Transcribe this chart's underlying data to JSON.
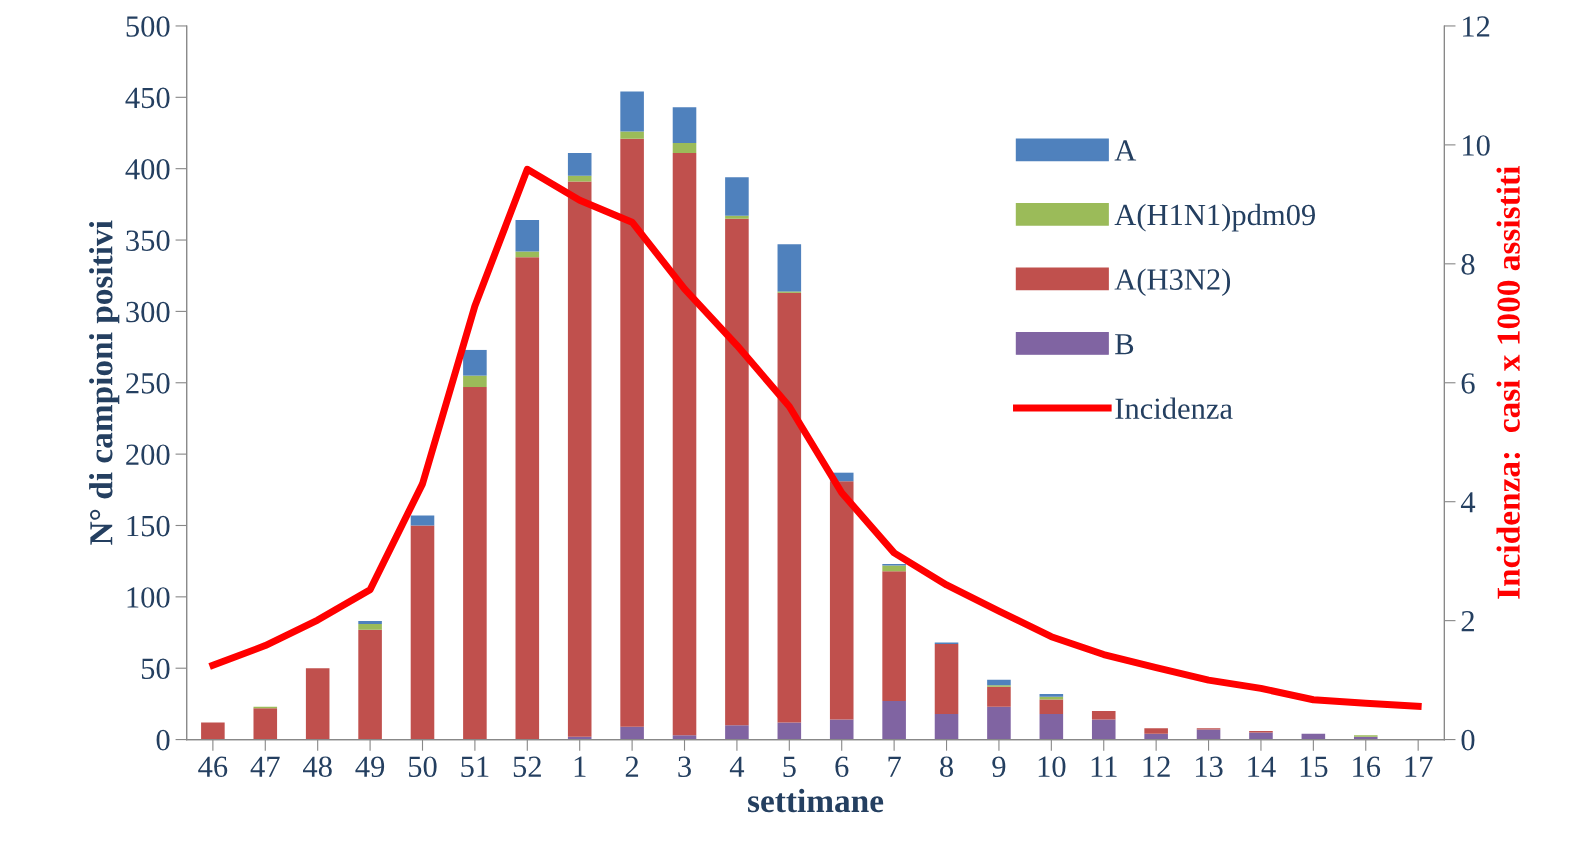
{
  "chart_data": {
    "type": "bar",
    "stacked": true,
    "xlabel": "settimane",
    "ylabel": "N° di campioni positivi",
    "y2label": "Incidenza:  casi x 1000 assistiti",
    "categories": [
      "46",
      "47",
      "48",
      "49",
      "50",
      "51",
      "52",
      "1",
      "2",
      "3",
      "4",
      "5",
      "6",
      "7",
      "8",
      "9",
      "10",
      "11",
      "12",
      "13",
      "14",
      "15",
      "16",
      "17"
    ],
    "series": [
      {
        "name": "B",
        "color": "#8064a2",
        "values": [
          0,
          null,
          0,
          0,
          null,
          0,
          0,
          2,
          9,
          3,
          10,
          12,
          14,
          27,
          18,
          23,
          18,
          14,
          4,
          7,
          5,
          4,
          2,
          null
        ]
      },
      {
        "name": "A(H3N2)",
        "color": "#c0504d",
        "values": [
          12,
          22,
          50,
          77,
          150,
          247,
          338,
          389,
          412,
          408,
          355,
          301,
          167,
          91,
          49,
          14,
          10,
          6,
          4,
          1,
          1,
          0,
          0,
          0
        ]
      },
      {
        "name": "A(H1N1)pdm09",
        "color": "#9bbb59",
        "values": [
          0,
          1,
          0,
          4,
          0,
          8,
          4,
          4,
          5,
          7,
          2,
          1,
          null,
          4,
          0,
          1,
          2,
          0,
          0,
          0,
          0,
          0,
          1,
          0
        ]
      },
      {
        "name": "A",
        "color": "#4f81bd",
        "values": [
          0,
          0,
          0,
          2,
          7,
          18,
          22,
          16,
          28,
          25,
          27,
          33,
          6,
          1,
          1,
          4,
          2,
          0,
          0,
          0,
          0,
          0,
          0,
          0
        ]
      },
      {
        "name": "Incidenza",
        "type": "line",
        "axis": "y2",
        "color": "#ff0000",
        "values": [
          1.25,
          1.58,
          2.01,
          2.52,
          4.3,
          7.29,
          9.59,
          9.07,
          8.7,
          7.58,
          6.63,
          5.6,
          4.15,
          3.14,
          2.6,
          2.16,
          1.73,
          1.43,
          1.21,
          1.0,
          0.86,
          0.67,
          0.61,
          0.56
        ]
      }
    ],
    "ylim": [
      0,
      500
    ],
    "yticks": [
      0,
      50,
      100,
      150,
      200,
      250,
      300,
      350,
      400,
      450,
      500
    ],
    "y2lim": [
      0,
      12
    ],
    "y2ticks": [
      0,
      2,
      4,
      6,
      8,
      10,
      12
    ],
    "grid": false,
    "legend": "top right",
    "marker": "none",
    "line_style": "solid"
  }
}
